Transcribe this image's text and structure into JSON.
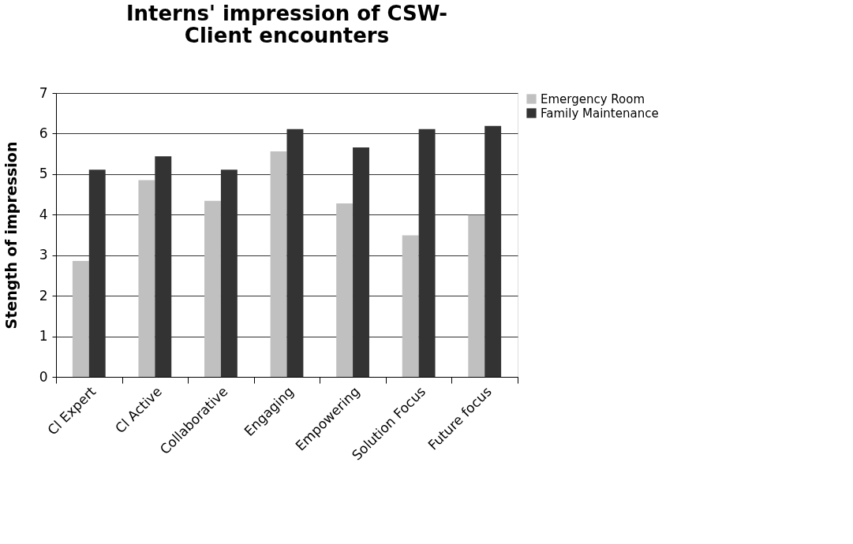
{
  "chart_data": {
    "type": "bar",
    "title": "Interns' impression of CSW-Client encounters",
    "ylabel": "Stength of impression",
    "categories": [
      "Cl Expert",
      "Cl Active",
      "Collaborative",
      "Engaging",
      "Empowering",
      "Solution Focus",
      "Future focus"
    ],
    "series": [
      {
        "name": "Emergency Room",
        "color": "#c0c0c0",
        "values": [
          2.86,
          4.85,
          4.34,
          5.56,
          4.28,
          3.49,
          3.99
        ]
      },
      {
        "name": "Family Maintenance",
        "color": "#333333",
        "values": [
          5.11,
          5.44,
          5.11,
          6.11,
          5.66,
          6.11,
          6.19
        ]
      }
    ],
    "ylim": [
      0,
      7
    ],
    "yticks": [
      0,
      1,
      2,
      3,
      4,
      5,
      6,
      7
    ],
    "grid": "y",
    "legend": "right"
  }
}
